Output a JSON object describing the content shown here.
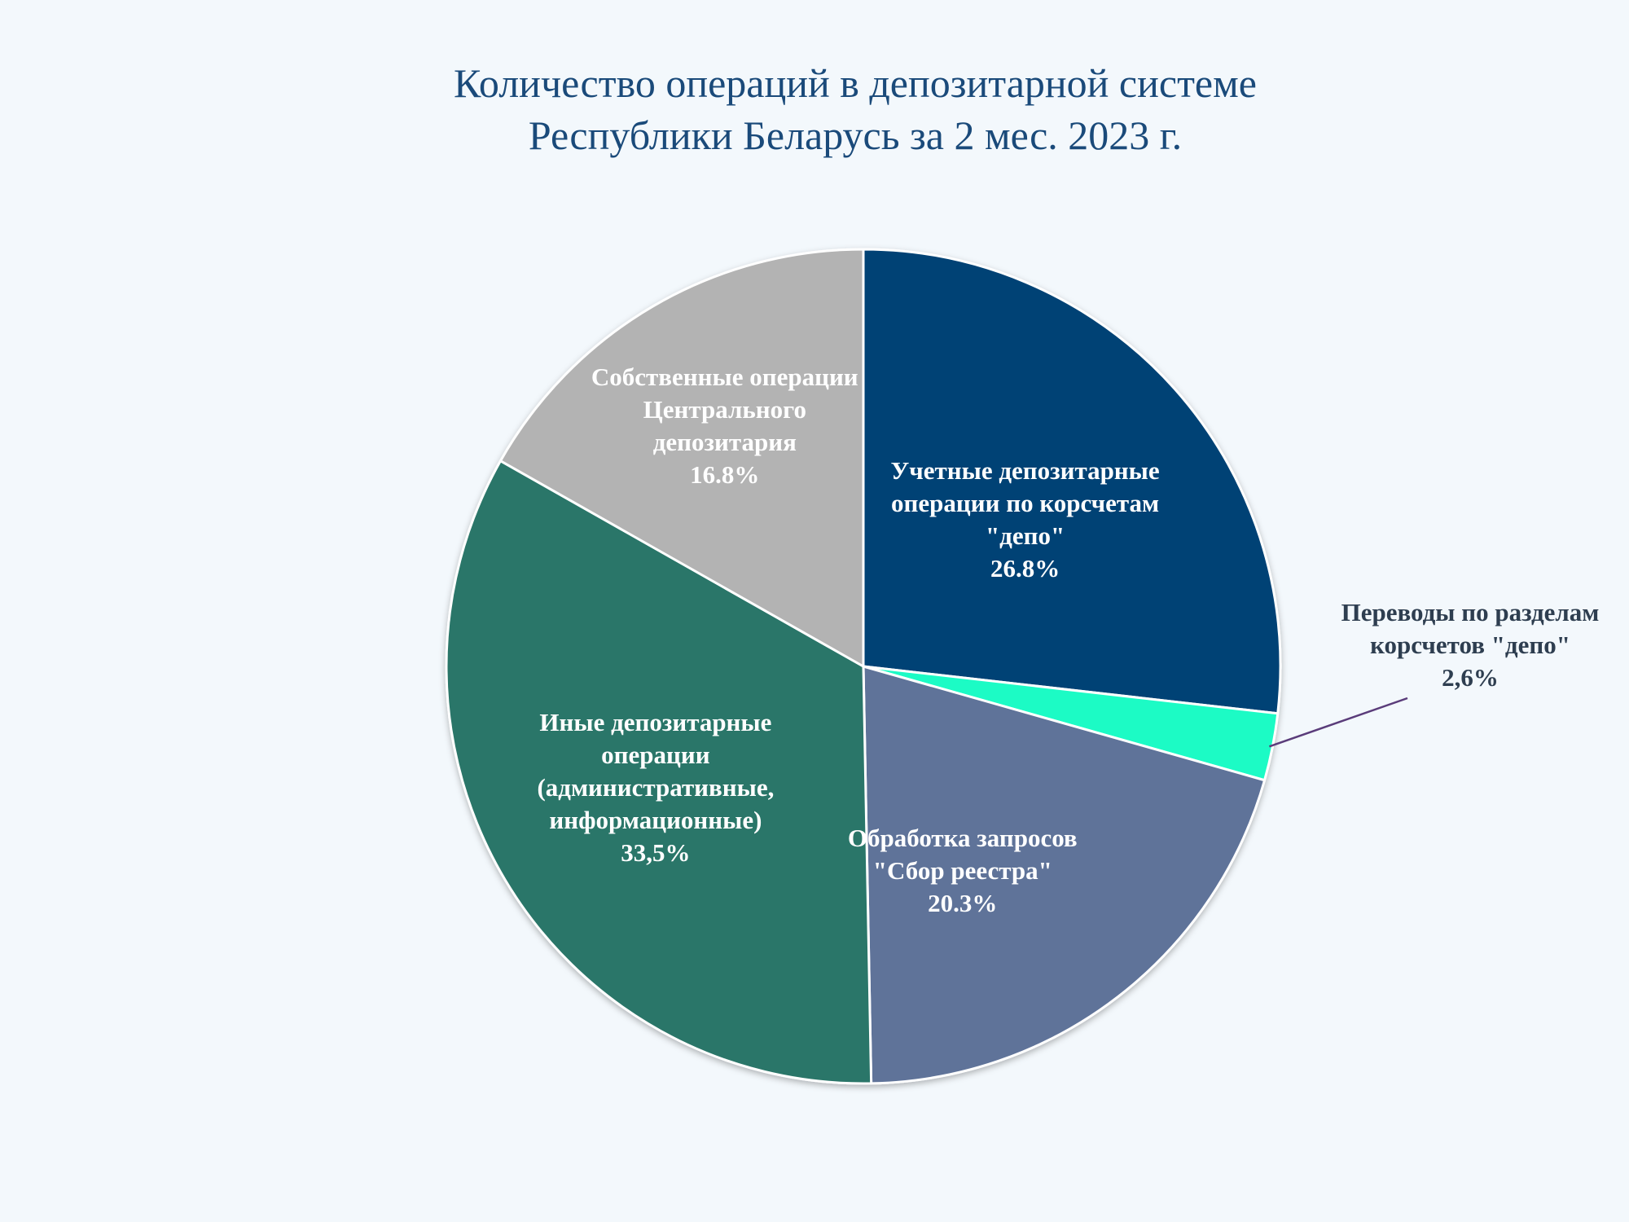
{
  "chart_data": {
    "type": "pie",
    "title": [
      "Количество операций в депозитарной системе",
      "Республики Беларусь за 2 мес. 2023 г."
    ],
    "start_angle": "12 o'clock",
    "direction": "clockwise",
    "slices": [
      {
        "name": "Учетные депозитарные операции по корсчетам \"депо\"",
        "label_lines": [
          "Учетные депозитарные",
          "операции по корсчетам",
          "\"депо\""
        ],
        "value": 26.8,
        "value_label": "26.8%",
        "color": "#004274",
        "label_color": "#ffffff"
      },
      {
        "name": "Переводы по разделам корсчетов \"депо\"",
        "label_lines": [
          "Переводы по разделам",
          "корсчетов \"депо\""
        ],
        "value": 2.6,
        "value_label": "2,6%",
        "color": "#1dfbc5",
        "label_color": "#2e3e50",
        "outside_label": true,
        "leader_color": "#5a3c7a"
      },
      {
        "name": "Обработка запросов \"Сбор реестра\"",
        "label_lines": [
          "Обработка запросов",
          "\"Сбор реестра\""
        ],
        "value": 20.3,
        "value_label": "20.3%",
        "color": "#5f7399",
        "label_color": "#ffffff"
      },
      {
        "name": "Иные депозитарные операции (административные, информационные)",
        "label_lines": [
          "Иные депозитарные",
          "операции",
          "(административные,",
          "информационные)"
        ],
        "value": 33.5,
        "value_label": "33,5%",
        "color": "#2c7669",
        "label_color": "#ffffff"
      },
      {
        "name": "Собственные операции Центрального депозитария",
        "label_lines": [
          "Собственные операции",
          "Центрального",
          "депозитария"
        ],
        "value": 16.8,
        "value_label": "16.8%",
        "color": "#b3b3b3",
        "label_color": "#ffffff"
      }
    ]
  }
}
